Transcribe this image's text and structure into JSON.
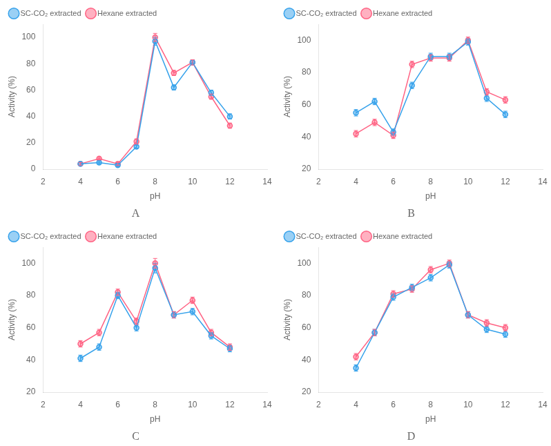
{
  "chart_data": [
    {
      "type": "line",
      "title": "A",
      "xlabel": "pH",
      "ylabel": "Activity (%)",
      "x": [
        4,
        5,
        6,
        7,
        8,
        9,
        10,
        11,
        12
      ],
      "xlim": [
        2,
        14
      ],
      "xticks": [
        2,
        4,
        6,
        8,
        10,
        12,
        14
      ],
      "ylim": [
        0,
        110
      ],
      "yticks": [
        0,
        20,
        40,
        60,
        80,
        100
      ],
      "grid": false,
      "legend": "upper left",
      "series": [
        {
          "name": "SC-CO₂ extracted",
          "marker": "circle",
          "values": [
            4,
            5,
            3,
            17,
            97,
            62,
            81,
            58,
            40
          ],
          "yerr": [
            1,
            1,
            1,
            1,
            3,
            2,
            2,
            2,
            2
          ]
        },
        {
          "name": "Hexane extracted",
          "marker": "circle",
          "values": [
            4,
            8,
            4,
            21,
            100,
            73,
            81,
            55,
            33
          ],
          "yerr": [
            1,
            1,
            1,
            2,
            3,
            2,
            2,
            2,
            2
          ]
        }
      ]
    },
    {
      "type": "line",
      "title": "B",
      "xlabel": "pH",
      "ylabel": "Activity (%)",
      "x": [
        4,
        5,
        6,
        7,
        8,
        9,
        10,
        11,
        12
      ],
      "xlim": [
        2,
        14
      ],
      "xticks": [
        2,
        4,
        6,
        8,
        10,
        12,
        14
      ],
      "ylim": [
        20,
        110
      ],
      "yticks": [
        20,
        40,
        60,
        80,
        100
      ],
      "grid": false,
      "legend": "upper left",
      "series": [
        {
          "name": "SC-CO₂ extracted",
          "marker": "circle",
          "values": [
            55,
            62,
            43,
            72,
            90,
            90,
            99,
            64,
            54
          ],
          "yerr": [
            2,
            2,
            2,
            2,
            2,
            2,
            2,
            2,
            2
          ]
        },
        {
          "name": "Hexane extracted",
          "marker": "circle",
          "values": [
            42,
            49,
            41,
            85,
            89,
            89,
            100,
            68,
            63
          ],
          "yerr": [
            2,
            2,
            2,
            2,
            2,
            2,
            2,
            2,
            2
          ]
        }
      ]
    },
    {
      "type": "line",
      "title": "C",
      "xlabel": "pH",
      "ylabel": "Activity (%)",
      "x": [
        4,
        5,
        6,
        7,
        8,
        9,
        10,
        11,
        12
      ],
      "xlim": [
        2,
        14
      ],
      "xticks": [
        2,
        4,
        6,
        8,
        10,
        12,
        14
      ],
      "ylim": [
        20,
        110
      ],
      "yticks": [
        20,
        40,
        60,
        80,
        100
      ],
      "grid": false,
      "legend": "upper left",
      "series": [
        {
          "name": "SC-CO₂ extracted",
          "marker": "circle",
          "values": [
            41,
            48,
            80,
            60,
            97,
            68,
            70,
            55,
            47
          ],
          "yerr": [
            2,
            2,
            2,
            2,
            3,
            2,
            2,
            2,
            2
          ]
        },
        {
          "name": "Hexane extracted",
          "marker": "circle",
          "values": [
            50,
            57,
            82,
            64,
            100,
            68,
            77,
            57,
            48
          ],
          "yerr": [
            2,
            2,
            2,
            2,
            3,
            2,
            2,
            2,
            2
          ]
        }
      ]
    },
    {
      "type": "line",
      "title": "D",
      "xlabel": "pH",
      "ylabel": "Activity (%)",
      "x": [
        4,
        5,
        6,
        7,
        8,
        9,
        10,
        11,
        12
      ],
      "xlim": [
        2,
        14
      ],
      "xticks": [
        2,
        4,
        6,
        8,
        10,
        12,
        14
      ],
      "ylim": [
        20,
        110
      ],
      "yticks": [
        20,
        40,
        60,
        80,
        100
      ],
      "grid": false,
      "legend": "upper left",
      "series": [
        {
          "name": "SC-CO₂ extracted",
          "marker": "circle",
          "values": [
            35,
            57,
            79,
            85,
            91,
            99,
            68,
            59,
            56
          ],
          "yerr": [
            2,
            2,
            2,
            2,
            2,
            2,
            2,
            2,
            2
          ]
        },
        {
          "name": "Hexane extracted",
          "marker": "circle",
          "values": [
            42,
            57,
            81,
            84,
            96,
            100,
            68,
            63,
            60
          ],
          "yerr": [
            2,
            2,
            2,
            2,
            2,
            2,
            2,
            2,
            2
          ]
        }
      ]
    }
  ]
}
